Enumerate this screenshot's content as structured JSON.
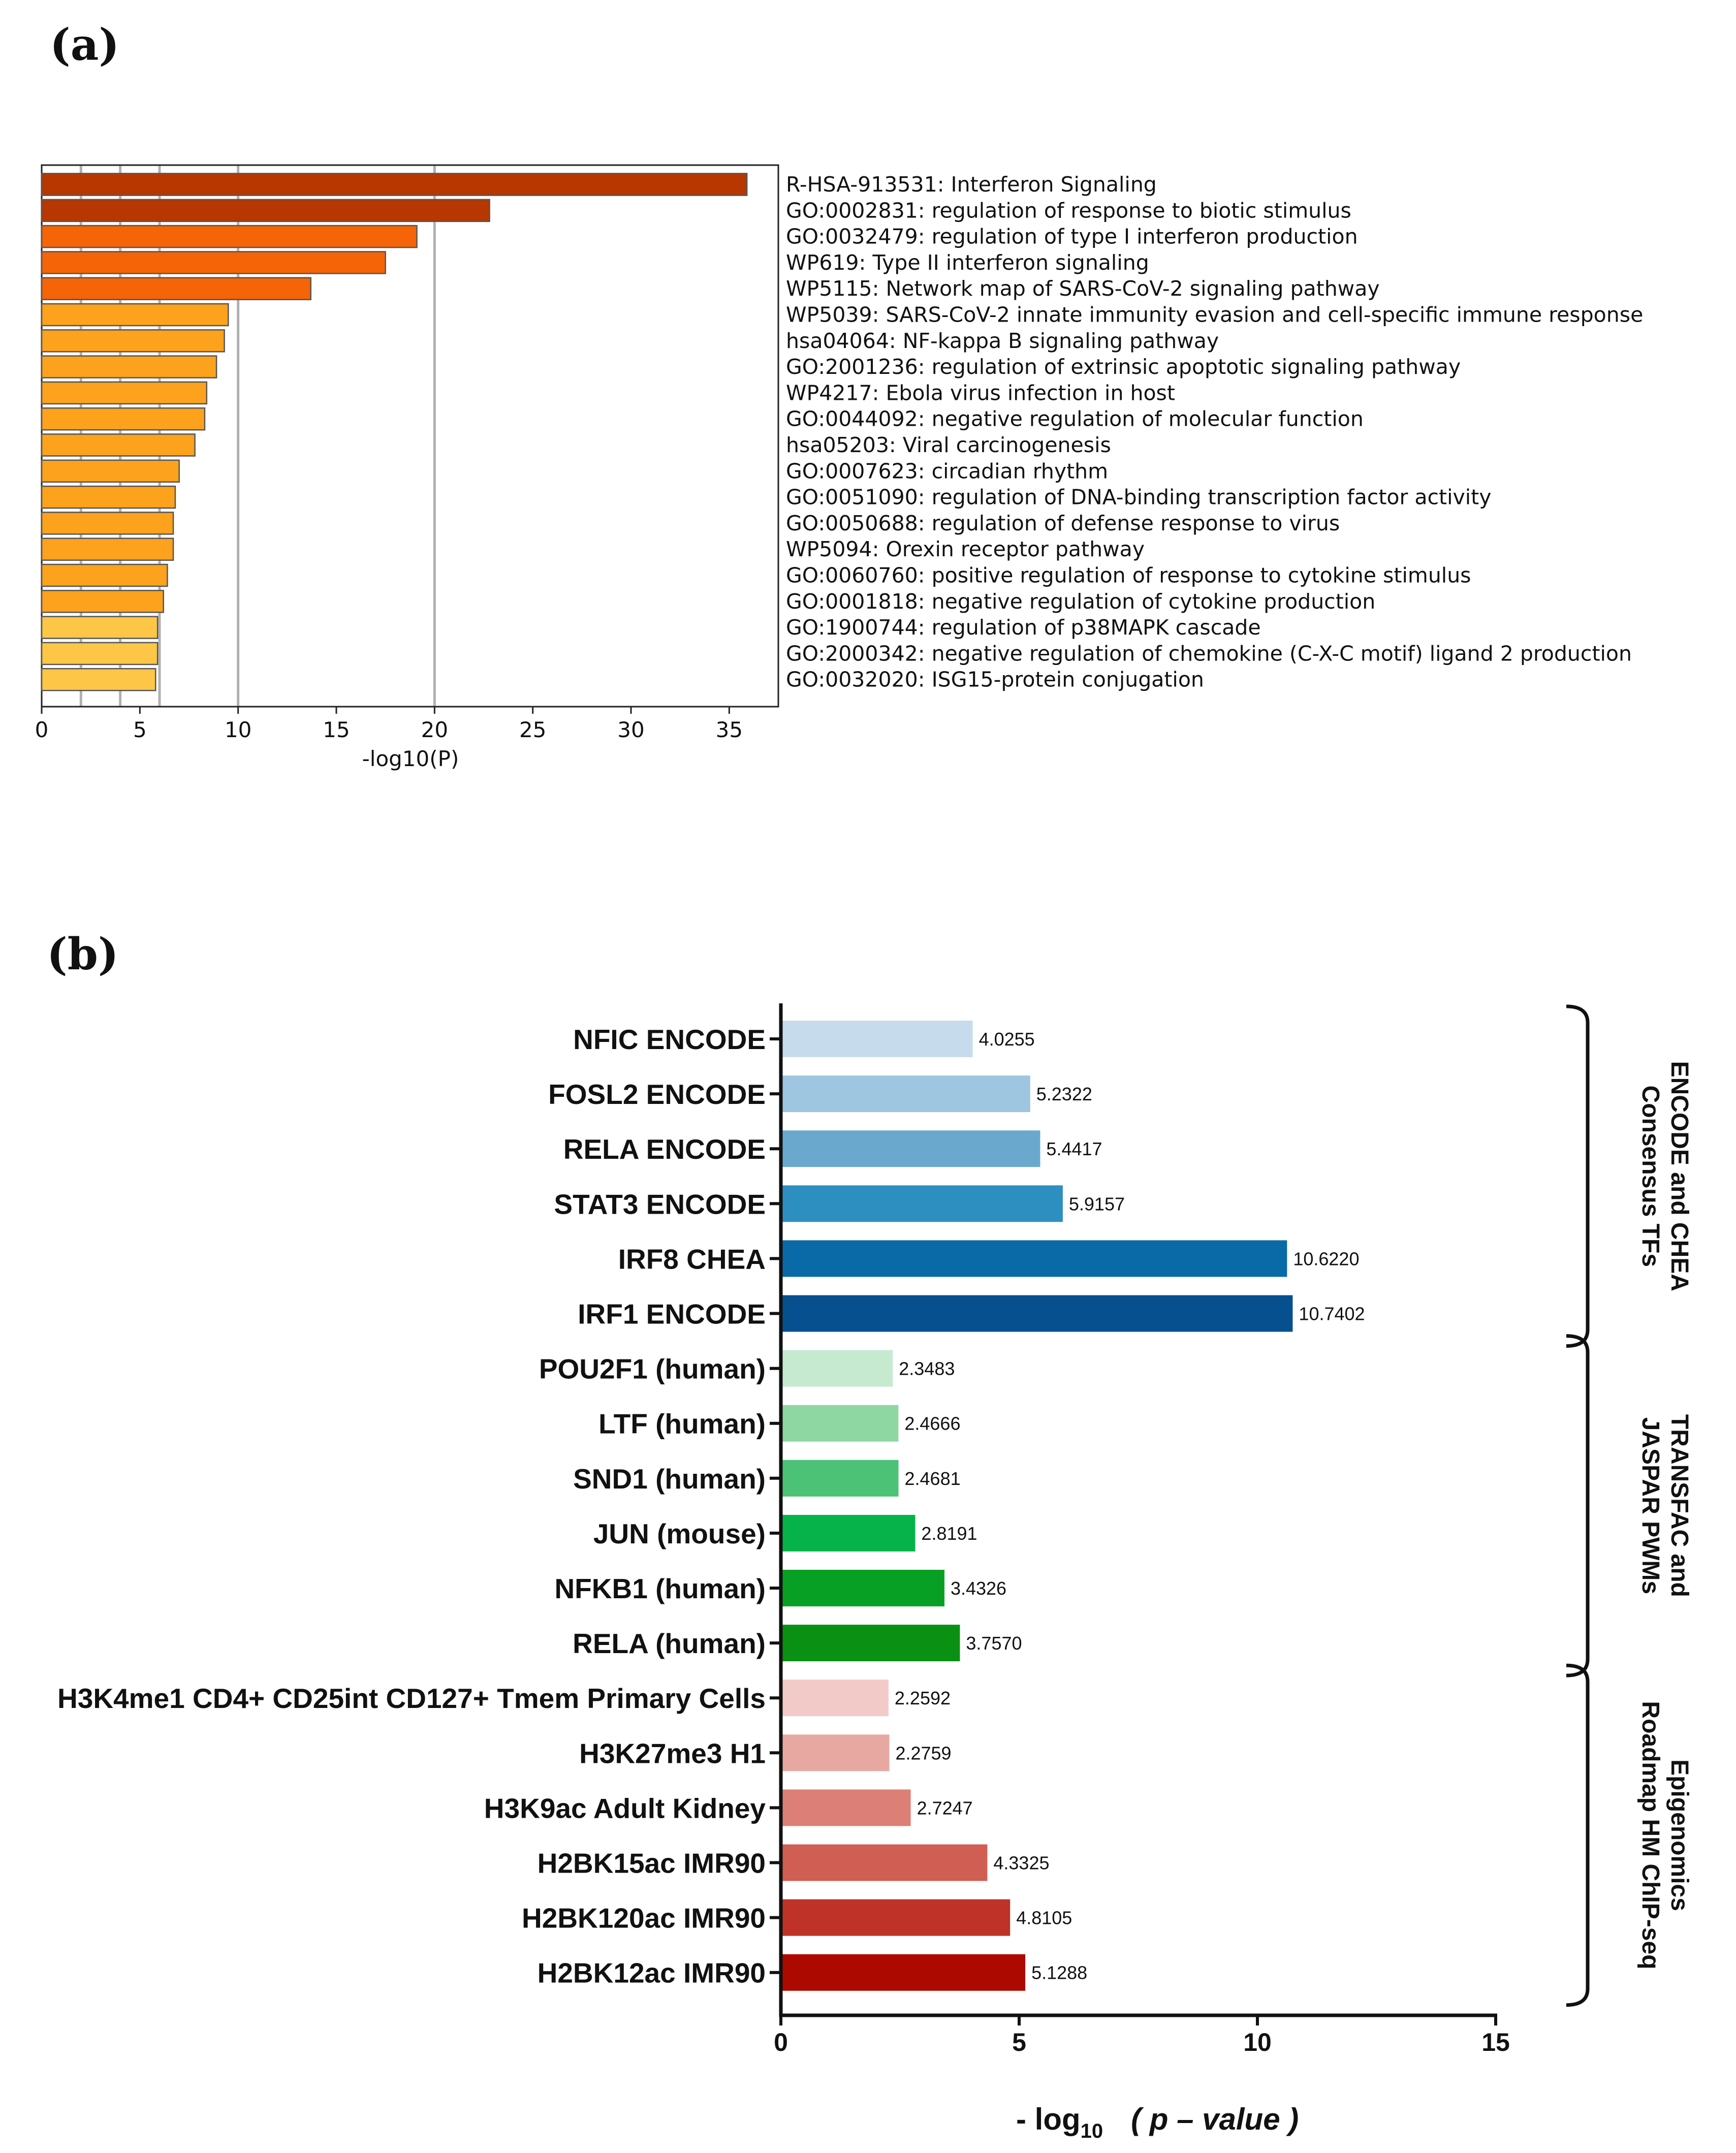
{
  "panels": {
    "a": "(a)",
    "b": "(b)"
  },
  "chart_data": [
    {
      "type": "bar",
      "orientation": "horizontal",
      "panel": "(a)",
      "title": "",
      "xlabel": "-log10(P)",
      "xlim": [
        0,
        37.5
      ],
      "xticks": [
        0,
        5,
        10,
        15,
        20,
        25,
        30,
        35
      ],
      "gridlines_at": [
        2,
        4,
        6,
        10,
        20
      ],
      "categories": [
        "R-HSA-913531: Interferon Signaling",
        "GO:0002831: regulation of response to biotic stimulus",
        "GO:0032479: regulation of type I interferon production",
        "WP619: Type II interferon signaling",
        "WP5115: Network map of SARS-CoV-2 signaling pathway",
        "WP5039: SARS-CoV-2 innate immunity evasion and cell-specific immune response",
        "hsa04064: NF-kappa B signaling pathway",
        "GO:2001236: regulation of extrinsic apoptotic signaling pathway",
        "WP4217: Ebola virus infection in host",
        "GO:0044092: negative regulation of molecular function",
        "hsa05203: Viral carcinogenesis",
        "GO:0007623: circadian rhythm",
        "GO:0051090: regulation of DNA-binding transcription factor activity",
        "GO:0050688: regulation of defense response to virus",
        "WP5094: Orexin receptor pathway",
        "GO:0060760: positive regulation of response to cytokine stimulus",
        "GO:0001818: negative regulation of cytokine production",
        "GO:1900744: regulation of p38MAPK cascade",
        "GO:2000342: negative regulation of chemokine (C-X-C motif) ligand 2 production",
        "GO:0032020: ISG15-protein conjugation"
      ],
      "values": [
        35.9,
        22.8,
        19.1,
        17.5,
        13.7,
        9.5,
        9.3,
        8.9,
        8.4,
        8.3,
        7.8,
        7.0,
        6.8,
        6.7,
        6.7,
        6.4,
        6.2,
        5.9,
        5.9,
        5.8
      ],
      "colors": [
        "#b83600",
        "#b83600",
        "#f56406",
        "#f56406",
        "#f56406",
        "#fca21c",
        "#fca21c",
        "#fca21c",
        "#fca21c",
        "#fca21c",
        "#fca21c",
        "#fca21c",
        "#fca21c",
        "#fca21c",
        "#fca21c",
        "#fca21c",
        "#fca21c",
        "#fdc647",
        "#fdc647",
        "#fdc647"
      ]
    },
    {
      "type": "bar",
      "orientation": "horizontal",
      "panel": "(b)",
      "xlabel_main": "- log",
      "xlabel_sub": "10",
      "xlabel_rest": "( p – value )",
      "xlim": [
        0,
        15
      ],
      "xticks": [
        0,
        5,
        10,
        15
      ],
      "categories": [
        "NFIC ENCODE",
        "FOSL2 ENCODE",
        "RELA ENCODE",
        "STAT3 ENCODE",
        "IRF8 CHEA",
        "IRF1 ENCODE",
        "POU2F1 (human)",
        "LTF (human)",
        "SND1 (human)",
        "JUN (mouse)",
        "NFKB1 (human)",
        "RELA (human)",
        "H3K4me1 CD4+ CD25int CD127+ Tmem Primary Cells",
        "H3K27me3 H1",
        "H3K9ac Adult Kidney",
        "H2BK15ac IMR90",
        "H2BK120ac IMR90",
        "H2BK12ac IMR90"
      ],
      "values": [
        4.0255,
        5.2322,
        5.4417,
        5.9157,
        10.622,
        10.7402,
        2.3483,
        2.4666,
        2.4681,
        2.8191,
        3.4326,
        3.757,
        2.2592,
        2.2759,
        2.7247,
        4.3325,
        4.8105,
        5.1288
      ],
      "value_labels": [
        "4.0255",
        "5.2322",
        "5.4417",
        "5.9157",
        "10.6220",
        "10.7402",
        "2.3483",
        "2.4666",
        "2.4681",
        "2.8191",
        "3.4326",
        "3.7570",
        "2.2592",
        "2.2759",
        "2.7247",
        "4.3325",
        "4.8105",
        "5.1288"
      ],
      "colors": [
        "#c6dcec",
        "#9ec6e0",
        "#6aa9cd",
        "#2d8fc0",
        "#0a6aa8",
        "#07508f",
        "#c6ead0",
        "#8fd7a2",
        "#4cc277",
        "#06b34a",
        "#07a024",
        "#0a9113",
        "#f2cbc8",
        "#e8a8a2",
        "#dc8077",
        "#d05e53",
        "#bf3228",
        "#ac0a00"
      ],
      "groups": [
        {
          "line1": "ENCODE and CHEA",
          "line2": "Consensus TFs",
          "start": 0,
          "end": 5
        },
        {
          "line1": "TRANSFAC and",
          "line2": "JASPAR PWMs",
          "start": 6,
          "end": 11
        },
        {
          "line1": "Epigenomics",
          "line2": "Roadmap HM ChIP-seq",
          "start": 12,
          "end": 17
        }
      ]
    }
  ]
}
